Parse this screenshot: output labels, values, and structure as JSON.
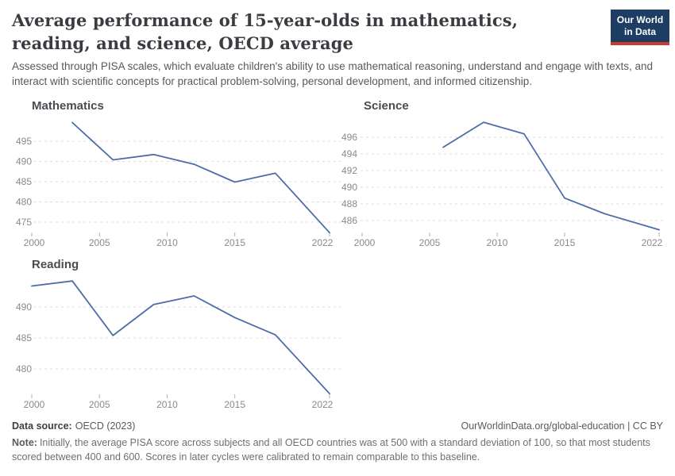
{
  "header": {
    "title": "Average performance of 15-year-olds in mathematics, reading, and science, OECD average",
    "subtitle": "Assessed through PISA scales, which evaluate children's ability to use mathematical reasoning, understand and engage with texts, and interact with scientific concepts for practical problem-solving, personal development, and informed citizenship.",
    "logo_line1": "Our World",
    "logo_line2": "in Data"
  },
  "palette": {
    "line": "#4d6ca8",
    "grid": "#dcdcdc",
    "tick_label": "#8a8a8a",
    "tick_mark": "#b0b0b0",
    "logo_bg": "#1d3d63",
    "logo_accent": "#cc3b31"
  },
  "chart_data": [
    {
      "type": "line",
      "title": "Mathematics",
      "x": [
        2003,
        2006,
        2009,
        2012,
        2015,
        2018,
        2022
      ],
      "values": [
        499.6,
        490.4,
        491.7,
        489.3,
        484.9,
        487.1,
        472.4
      ],
      "x_ticks": [
        2000,
        2005,
        2010,
        2015,
        2022
      ],
      "y_ticks": [
        475,
        480,
        485,
        490,
        495
      ],
      "xlim": [
        2000,
        2022
      ],
      "ylim": [
        471.5,
        500.5
      ],
      "grid": "dashed",
      "legend": "none"
    },
    {
      "type": "line",
      "title": "Science",
      "x": [
        2006,
        2009,
        2012,
        2015,
        2018,
        2022
      ],
      "values": [
        494.8,
        497.8,
        496.4,
        488.7,
        486.8,
        484.9
      ],
      "x_ticks": [
        2000,
        2005,
        2010,
        2015,
        2022
      ],
      "y_ticks": [
        486,
        488,
        490,
        492,
        494,
        496
      ],
      "xlim": [
        2000,
        2022
      ],
      "ylim": [
        484.3,
        498.2
      ],
      "grid": "dashed",
      "legend": "none"
    },
    {
      "type": "line",
      "title": "Reading",
      "x": [
        2000,
        2003,
        2006,
        2009,
        2012,
        2015,
        2018,
        2022
      ],
      "values": [
        493.4,
        494.2,
        485.4,
        490.4,
        491.8,
        488.3,
        485.5,
        476.0
      ],
      "x_ticks": [
        2000,
        2005,
        2010,
        2015,
        2022
      ],
      "y_ticks": [
        480,
        485,
        490
      ],
      "xlim": [
        2000,
        2022
      ],
      "ylim": [
        474.5,
        495.5
      ],
      "grid": "dashed",
      "legend": "none"
    }
  ],
  "footer": {
    "source_label": "Data source:",
    "source_value": "OECD (2023)",
    "link": "OurWorldinData.org/global-education | CC BY",
    "note_label": "Note:",
    "note_value": "Initially, the average PISA score across subjects and all OECD countries was at 500 with a standard deviation of 100, so that most students scored between 400 and 600. Scores in later cycles were calibrated to remain comparable to this baseline."
  }
}
